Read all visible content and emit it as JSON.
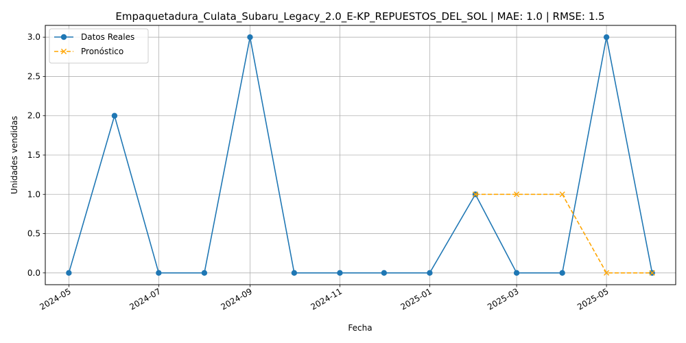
{
  "chart_data": {
    "type": "line",
    "title": "Empaquetadura_Culata_Subaru_Legacy_2.0_E-KP_REPUESTOS_DEL_SOL | MAE: 1.0 | RMSE: 1.5",
    "xlabel": "Fecha",
    "ylabel": "Unidades vendidas",
    "x_ticks": [
      "2024-05",
      "2024-07",
      "2024-09",
      "2024-11",
      "2025-01",
      "2025-03",
      "2025-05"
    ],
    "y_ticks": [
      "0.0",
      "0.5",
      "1.0",
      "1.5",
      "2.0",
      "2.5",
      "3.0"
    ],
    "ylim": [
      -0.15,
      3.15
    ],
    "xlim": [
      "2024-04-15",
      "2025-06-17"
    ],
    "grid": true,
    "legend_position": "upper-left",
    "series": [
      {
        "name": "Datos Reales",
        "color": "#1f77b4",
        "line_style": "solid",
        "marker": "circle",
        "x": [
          "2024-05-01",
          "2024-06-01",
          "2024-07-01",
          "2024-08-01",
          "2024-09-01",
          "2024-10-01",
          "2024-11-01",
          "2024-12-01",
          "2025-01-01",
          "2025-02-01",
          "2025-03-01",
          "2025-04-01",
          "2025-05-01",
          "2025-06-01"
        ],
        "values": [
          0,
          2,
          0,
          0,
          3,
          0,
          0,
          0,
          0,
          1,
          0,
          0,
          3,
          0
        ]
      },
      {
        "name": "Pronóstico",
        "color": "#ffa500",
        "line_style": "dashed",
        "marker": "x",
        "x": [
          "2025-02-01",
          "2025-03-01",
          "2025-04-01",
          "2025-05-01",
          "2025-06-01"
        ],
        "values": [
          1,
          1,
          1,
          0,
          0
        ]
      }
    ]
  }
}
